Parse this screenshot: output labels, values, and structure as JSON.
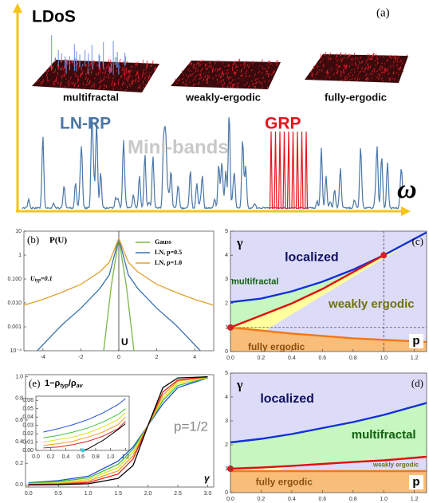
{
  "chart_data": [
    {
      "type": "schematic",
      "panel": "(a)",
      "y_label": "LDoS",
      "x_label": "ω",
      "surface_labels": [
        "multifractal",
        "weakly-ergodic",
        "fully-ergodic"
      ],
      "annotations": [
        {
          "text": "LN-RP",
          "color": "#4a76a6"
        },
        {
          "text": "Mini-bands",
          "color": "#c8c8c8"
        },
        {
          "text": "GRP",
          "color": "#e8141a"
        }
      ]
    },
    {
      "type": "line",
      "panel": "(b)",
      "title": "P(U)",
      "x_label": "U",
      "annotation": [
        "U",
        "typ",
        "=0.1"
      ],
      "log_y": true,
      "xlim": [
        -5,
        5
      ],
      "ylim": [
        0.0001,
        10
      ],
      "xticks": [
        -4,
        -2,
        0,
        2,
        4
      ],
      "yticks": [
        {
          "value": 0.0001,
          "label": "10⁻⁴"
        },
        0.001,
        {
          "value": 0.01,
          "label": "0.010"
        },
        {
          "value": 0.1,
          "label": "0.100"
        },
        1,
        10
      ],
      "legend": "upper right",
      "series": [
        {
          "name": "Gauss",
          "color": "#7ab648",
          "x": [
            -0.8,
            -0.4,
            0,
            0.4,
            0.8
          ],
          "values": [
            0.0001,
            0.05,
            5,
            0.05,
            0.0001
          ]
        },
        {
          "name": "LN, p=0.5",
          "color": "#3b72b0",
          "x": [
            -4.3,
            -3,
            -2,
            -1,
            -0.5,
            0,
            0.5,
            1,
            2,
            3,
            4.3
          ],
          "values": [
            0.0001,
            0.0012,
            0.006,
            0.04,
            0.15,
            5,
            0.15,
            0.04,
            0.006,
            0.0012,
            0.0001
          ]
        },
        {
          "name": "LN, p=1.0",
          "color": "#e0a030",
          "x": [
            -5,
            -4,
            -3,
            -2,
            -1,
            -0.5,
            0,
            0.5,
            1,
            2,
            3,
            4,
            5
          ],
          "values": [
            0.008,
            0.014,
            0.028,
            0.06,
            0.2,
            0.5,
            5,
            0.5,
            0.2,
            0.06,
            0.028,
            0.014,
            0.008
          ]
        }
      ]
    },
    {
      "type": "phase",
      "panel": "(c)",
      "y_label": "γ",
      "x_label": "p",
      "xlim": [
        0,
        1.28
      ],
      "ylim": [
        0,
        5
      ],
      "xticks": [
        {
          "value": 0,
          "label": "0.0"
        },
        0.2,
        0.4,
        0.6,
        0.8,
        {
          "value": 1,
          "label": "1.0"
        },
        1.2
      ],
      "yticks": [
        0,
        1,
        2,
        3,
        4,
        5
      ],
      "regions": [
        {
          "name": "localized",
          "color": "#dcdcf8",
          "text_color": "#101060"
        },
        {
          "name": "multifractal",
          "color": "#c6f7c0",
          "text_color": "#106010"
        },
        {
          "name": "weakly ergodic",
          "color": "#ffff9e",
          "text_color": "#707010"
        },
        {
          "name": "fully ergodic",
          "color": "#f8bd78",
          "text_color": "#8a5010"
        }
      ],
      "boundaries": [
        {
          "color": "#1430d8",
          "x": [
            0,
            0.2,
            0.4,
            0.6,
            0.8,
            1,
            1.28
          ],
          "values": [
            2.05,
            2.2,
            2.5,
            2.9,
            3.4,
            4,
            4.95
          ]
        },
        {
          "color": "#e01010",
          "x": [
            0,
            0.2,
            0.4,
            0.6,
            0.8,
            1
          ],
          "values": [
            1,
            1.5,
            2,
            2.6,
            3.3,
            4
          ]
        },
        {
          "color": "#f07818",
          "x": [
            0,
            0.4,
            0.8,
            1.28
          ],
          "values": [
            1,
            0.75,
            0.55,
            0.4
          ]
        }
      ],
      "points": {
        "color": "#d82020",
        "x": [
          0,
          1
        ],
        "values": [
          1,
          4
        ]
      },
      "guides": {
        "x": 1,
        "y": 1
      }
    },
    {
      "type": "phase",
      "panel": "(d)",
      "y_label": "γ",
      "x_label": "p",
      "xlim": [
        0,
        1.28
      ],
      "ylim": [
        0,
        5
      ],
      "xticks": [
        {
          "value": 0,
          "label": "0.0"
        },
        0.2,
        0.4,
        0.6,
        0.8,
        {
          "value": 1,
          "label": "1.0"
        },
        1.2
      ],
      "yticks": [
        0,
        1,
        2,
        3,
        4,
        5
      ],
      "regions": [
        {
          "name": "localized",
          "color": "#dcdcf8",
          "text_color": "#101060"
        },
        {
          "name": "multifractal",
          "color": "#c6f7c0",
          "text_color": "#106010"
        },
        {
          "name": "weakly ergodic",
          "color": "#ffffc0",
          "text_color": "#707010"
        },
        {
          "name": "fully ergodic",
          "color": "#f8bd78",
          "text_color": "#8a5010"
        }
      ],
      "boundaries": [
        {
          "color": "#1430d8",
          "x": [
            0,
            0.2,
            0.4,
            0.6,
            0.8,
            1,
            1.28
          ],
          "values": [
            2.1,
            2.25,
            2.45,
            2.7,
            2.95,
            3.25,
            3.75
          ]
        },
        {
          "color": "#e01010",
          "x": [
            0,
            0.2,
            0.4,
            0.6,
            0.8,
            1,
            1.28
          ],
          "values": [
            1,
            1.05,
            1.12,
            1.2,
            1.28,
            1.35,
            1.5
          ]
        },
        {
          "color": "#f07818",
          "x": [
            0,
            1.28
          ],
          "values": [
            0.9,
            0.9
          ]
        }
      ],
      "points": {
        "color": "#d82020",
        "x": [
          0
        ],
        "values": [
          1
        ]
      }
    },
    {
      "type": "line",
      "panel": "(e)",
      "title": [
        "1−ρ",
        "typ",
        "/ρ",
        "av"
      ],
      "annotation": "p=1/2",
      "x_label": "γ",
      "xlim": [
        -0.05,
        3.1
      ],
      "ylim": [
        -0.02,
        1.02
      ],
      "xticks": [
        {
          "value": 0,
          "label": "0.0"
        },
        0.5,
        {
          "value": 1,
          "label": "1.0"
        },
        1.5,
        {
          "value": 2,
          "label": "2.0"
        },
        2.5,
        {
          "value": 3,
          "label": "3.0"
        }
      ],
      "yticks": [
        {
          "value": 0,
          "label": "0.0"
        },
        0.2,
        0.4,
        0.6,
        0.8,
        {
          "value": 1,
          "label": "1.0"
        }
      ],
      "series": [
        {
          "color": "#2050d0",
          "x": [
            0,
            0.5,
            1,
            1.5,
            1.75,
            2,
            2.25,
            2.5,
            3
          ],
          "values": [
            0.02,
            0.04,
            0.08,
            0.22,
            0.35,
            0.55,
            0.75,
            0.9,
            0.99
          ]
        },
        {
          "color": "#40c040",
          "x": [
            0,
            0.5,
            1,
            1.5,
            1.75,
            2,
            2.25,
            2.5,
            3
          ],
          "values": [
            0.015,
            0.03,
            0.065,
            0.19,
            0.33,
            0.55,
            0.78,
            0.92,
            0.99
          ]
        },
        {
          "color": "#e0e020",
          "x": [
            0,
            0.5,
            1,
            1.5,
            1.75,
            2,
            2.25,
            2.5,
            3
          ],
          "values": [
            0.01,
            0.02,
            0.05,
            0.16,
            0.3,
            0.55,
            0.8,
            0.94,
            0.995
          ]
        },
        {
          "color": "#f0a020",
          "x": [
            0,
            0.5,
            1,
            1.5,
            1.75,
            2,
            2.25,
            2.5,
            3
          ],
          "values": [
            0.005,
            0.012,
            0.035,
            0.13,
            0.27,
            0.55,
            0.83,
            0.96,
            1
          ]
        },
        {
          "color": "#e02020",
          "x": [
            0,
            0.5,
            1,
            1.5,
            1.75,
            2,
            2.25,
            2.5,
            3
          ],
          "values": [
            0.003,
            0.007,
            0.022,
            0.1,
            0.24,
            0.55,
            0.86,
            0.97,
            1
          ]
        },
        {
          "color": "#000000",
          "x": [
            0,
            0.5,
            1,
            1.5,
            1.75,
            2,
            2.25,
            2.5,
            3
          ],
          "values": [
            0,
            0.002,
            0.01,
            0.06,
            0.18,
            0.55,
            0.9,
            0.99,
            1
          ]
        }
      ],
      "inset": {
        "xlim": [
          0,
          1.25
        ],
        "ylim": [
          0,
          0.065
        ],
        "xticks": [
          {
            "value": 0,
            "label": "0.0"
          },
          0.2,
          0.4,
          0.6,
          0.8,
          {
            "value": 1,
            "label": "1.0"
          },
          1.2
        ],
        "yticks": [
          {
            "value": 0,
            "label": "0.00"
          },
          0.01,
          0.02,
          0.03,
          0.04,
          0.05,
          0.06
        ],
        "series": [
          {
            "color": "#2050d0",
            "x": [
              0.1,
              0.3,
              0.5,
              0.7,
              0.9,
              1.1,
              1.2
            ],
            "values": [
              0.022,
              0.026,
              0.031,
              0.037,
              0.045,
              0.055,
              0.062
            ]
          },
          {
            "color": "#40c040",
            "x": [
              0.1,
              0.3,
              0.5,
              0.7,
              0.9,
              1.1,
              1.2
            ],
            "values": [
              0.015,
              0.018,
              0.022,
              0.027,
              0.034,
              0.043,
              0.05
            ]
          },
          {
            "color": "#e0e020",
            "x": [
              0.1,
              0.3,
              0.5,
              0.7,
              0.9,
              1.1,
              1.2
            ],
            "values": [
              0.01,
              0.013,
              0.016,
              0.021,
              0.028,
              0.037,
              0.045
            ]
          },
          {
            "color": "#f0a020",
            "x": [
              0.1,
              0.3,
              0.5,
              0.7,
              0.9,
              1.1,
              1.2
            ],
            "values": [
              0.006,
              0.008,
              0.011,
              0.016,
              0.022,
              0.031,
              0.04
            ]
          },
          {
            "color": "#e02020",
            "x": [
              0.1,
              0.3,
              0.5,
              0.7,
              0.9,
              1.1,
              1.2
            ],
            "values": [
              0.003,
              0.004,
              0.007,
              0.011,
              0.017,
              0.026,
              0.035
            ]
          },
          {
            "color": "#000000",
            "x": [
              0.63,
              0.7,
              0.9,
              1.1,
              1.2
            ],
            "values": [
              0,
              0.002,
              0.012,
              0.025,
              0.032
            ]
          }
        ],
        "marker": {
          "color": "#30d0e0",
          "x": 0.63,
          "y": 0
        }
      }
    }
  ]
}
